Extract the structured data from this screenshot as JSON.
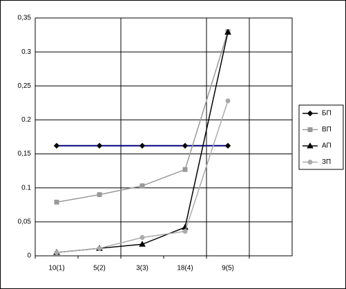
{
  "chart_data": {
    "type": "line",
    "categories": [
      "10(1)",
      "5(2)",
      "3(3)",
      "18(4)",
      "9(5)",
      null
    ],
    "series": [
      {
        "name": "БП",
        "color": "#000080",
        "marker": "diamond",
        "values": [
          0.162,
          0.162,
          0.162,
          0.162,
          0.162,
          null
        ]
      },
      {
        "name": "ВП",
        "color": "#999999",
        "marker": "square",
        "values": [
          0.079,
          0.09,
          0.103,
          0.127,
          0.33,
          null
        ]
      },
      {
        "name": "АП",
        "color": "#000000",
        "marker": "triangle",
        "values": [
          0.005,
          0.011,
          0.017,
          0.042,
          0.329,
          null
        ]
      },
      {
        "name": "ЗП",
        "color": "#aaaaaa",
        "marker": "circle",
        "values": [
          0.005,
          0.011,
          0.027,
          0.036,
          0.228,
          null
        ]
      }
    ],
    "ylim": [
      0,
      0.35
    ],
    "yticks": [
      0,
      {
        "value": 0.05,
        "label": "0,05"
      },
      0.1,
      {
        "value": 0.15,
        "label": "0,15"
      },
      0.2,
      {
        "value": 0.25,
        "label": "0,25"
      },
      0.3,
      {
        "value": 0.35,
        "label": "0,35"
      }
    ],
    "grid": true,
    "legend": "right"
  }
}
